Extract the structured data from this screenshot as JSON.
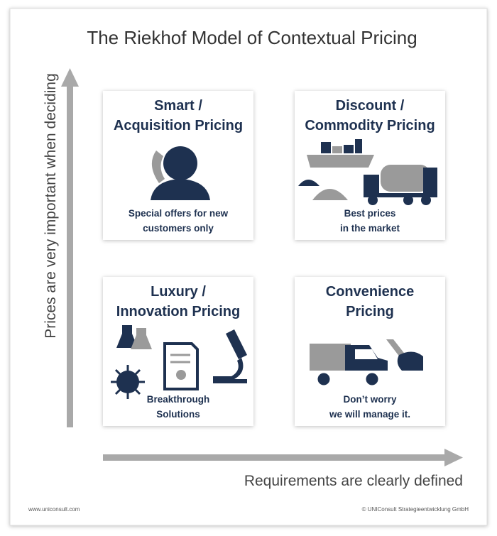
{
  "title": "The Riekhof Model of Contextual Pricing",
  "y_axis_label": "Prices are very important when deciding",
  "x_axis_label": "Requirements are clearly defined",
  "quadrants": [
    {
      "title_lines": [
        "Smart /",
        "Acquisition Pricing"
      ],
      "caption_lines": [
        "Special offers for new",
        "customers only"
      ]
    },
    {
      "title_lines": [
        "Discount /",
        "Commodity Pricing"
      ],
      "caption_lines": [
        "Best prices",
        "in the market"
      ]
    },
    {
      "title_lines": [
        "Luxury /",
        "Innovation Pricing"
      ],
      "caption_lines": [
        "Breakthrough",
        "Solutions"
      ]
    },
    {
      "title_lines": [
        "Convenience",
        "Pricing"
      ],
      "caption_lines": [
        "Don’t worry",
        "we will manage it."
      ]
    }
  ],
  "footer": {
    "left": "www.uniconsult.com",
    "right": "© UNIConsult Strategieentwicklung GmbH"
  }
}
